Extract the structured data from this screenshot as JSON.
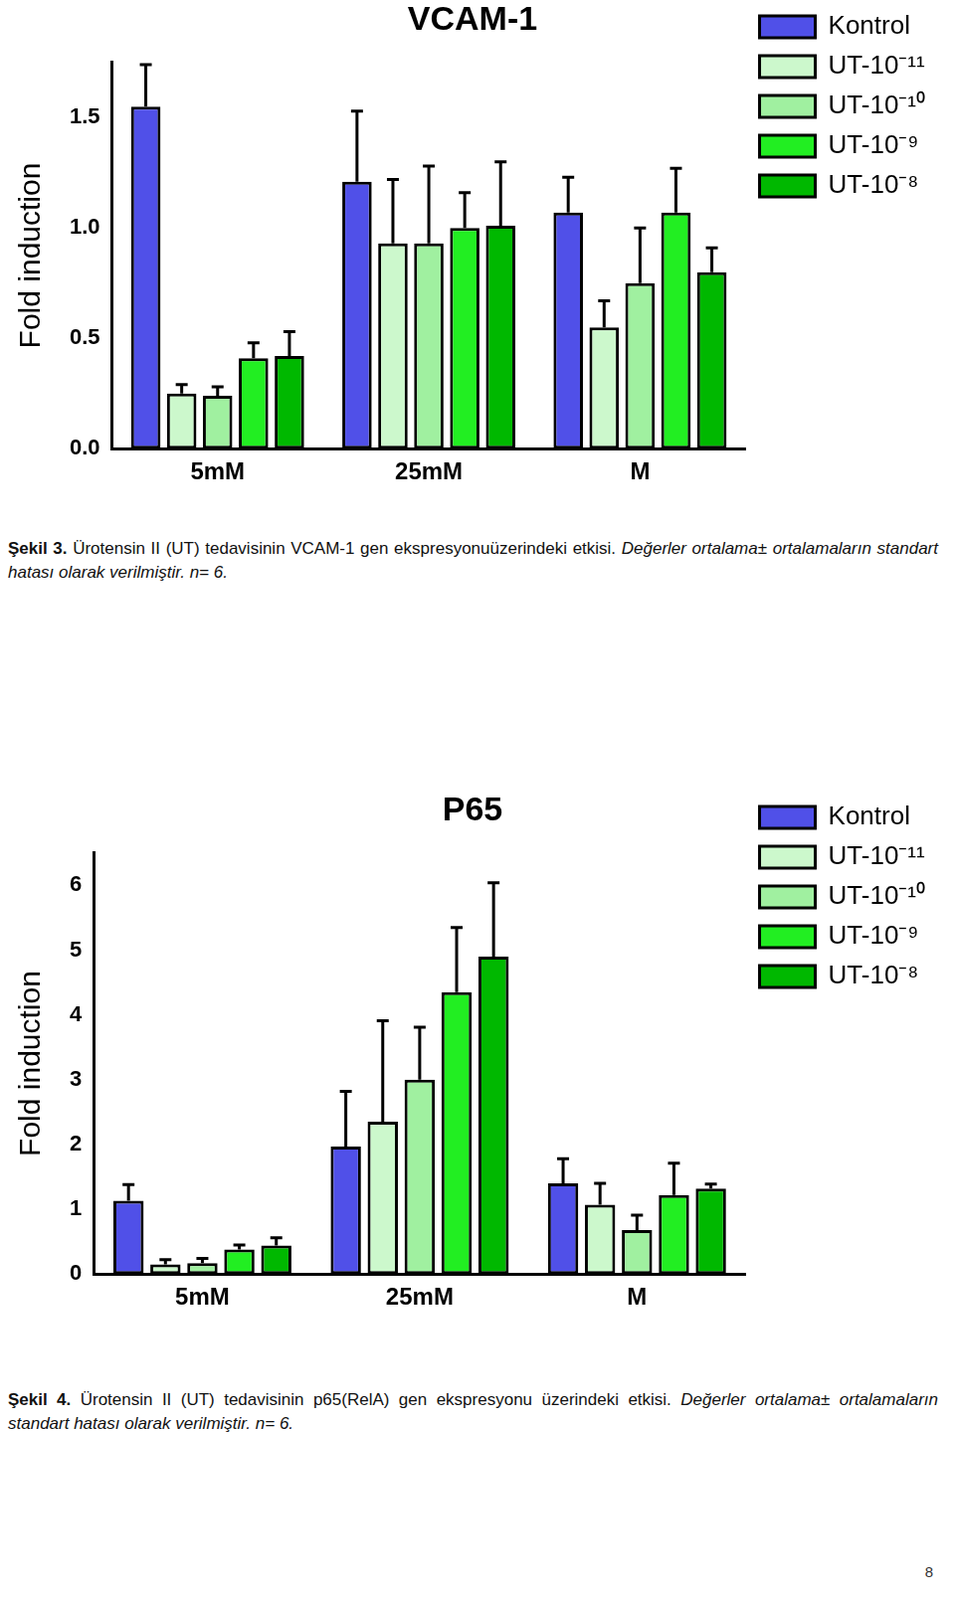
{
  "chart_data": [
    {
      "type": "bar",
      "title": "VCAM-1",
      "y_label": "Fold induction",
      "categories": [
        "5mM",
        "25mM",
        "M"
      ],
      "series": [
        {
          "name": "Kontrol",
          "color": "#5050e8",
          "values": [
            1.55,
            1.21,
            1.07
          ],
          "errors": [
            0.19,
            0.32,
            0.16
          ]
        },
        {
          "name": "UT-10⁻¹¹",
          "color": "#ccf8cc",
          "values": [
            0.25,
            0.93,
            0.55
          ],
          "errors": [
            0.04,
            0.29,
            0.12
          ]
        },
        {
          "name": "UT-10⁻¹⁰",
          "color": "#a0f0a0",
          "values": [
            0.24,
            0.93,
            0.75
          ],
          "errors": [
            0.04,
            0.35,
            0.25
          ]
        },
        {
          "name": "UT-10⁻⁹",
          "color": "#22ee22",
          "values": [
            0.41,
            1.0,
            1.07
          ],
          "errors": [
            0.07,
            0.16,
            0.2
          ]
        },
        {
          "name": "UT-10⁻⁸",
          "color": "#00b800",
          "values": [
            0.42,
            1.01,
            0.8
          ],
          "errors": [
            0.11,
            0.29,
            0.11
          ]
        }
      ],
      "ylim": [
        0,
        1.75
      ],
      "yticks": [
        {
          "value": 0,
          "label": "0.0"
        },
        {
          "value": 0.5,
          "label": "0.5"
        },
        {
          "value": 1,
          "label": "1.0"
        },
        {
          "value": 1.5,
          "label": "1.5"
        }
      ],
      "grid": false,
      "legend": "right",
      "caption": {
        "label": "Şekil 3.",
        "text": "Ürotensin II (UT) tedavisinin VCAM-1 gen ekspresyonuüzerindeki etkisi.",
        "note": "Değerler ortalama± ortalamaların standart hatası olarak verilmiştir. n= 6."
      }
    },
    {
      "type": "bar",
      "title": "P65",
      "y_label": "Fold induction",
      "categories": [
        "5mM",
        "25mM",
        "M"
      ],
      "series": [
        {
          "name": "Kontrol",
          "color": "#5050e8",
          "values": [
            1.13,
            1.97,
            1.4
          ],
          "errors": [
            0.25,
            0.85,
            0.38
          ]
        },
        {
          "name": "UT-10⁻¹¹",
          "color": "#ccf8cc",
          "values": [
            0.15,
            2.35,
            1.07
          ],
          "errors": [
            0.07,
            1.56,
            0.33
          ]
        },
        {
          "name": "UT-10⁻¹⁰",
          "color": "#a0f0a0",
          "values": [
            0.17,
            3.0,
            0.68
          ],
          "errors": [
            0.07,
            0.81,
            0.23
          ]
        },
        {
          "name": "UT-10⁻⁹",
          "color": "#22ee22",
          "values": [
            0.38,
            4.35,
            1.22
          ],
          "errors": [
            0.07,
            1.0,
            0.49
          ]
        },
        {
          "name": "UT-10⁻⁸",
          "color": "#00b800",
          "values": [
            0.44,
            4.9,
            1.32
          ],
          "errors": [
            0.12,
            1.14,
            0.07
          ]
        }
      ],
      "ylim": [
        0,
        6.5
      ],
      "yticks": [
        0,
        1,
        2,
        3,
        4,
        5,
        6
      ],
      "grid": false,
      "legend": "right",
      "caption": {
        "label": "Şekil 4.",
        "text": "Ürotensin II (UT) tedavisinin p65(RelA) gen ekspresyonu üzerindeki etkisi.",
        "note": "Değerler ortalama± ortalamaların standart hatası olarak verilmiştir. n= 6."
      }
    }
  ],
  "page_number": 8
}
